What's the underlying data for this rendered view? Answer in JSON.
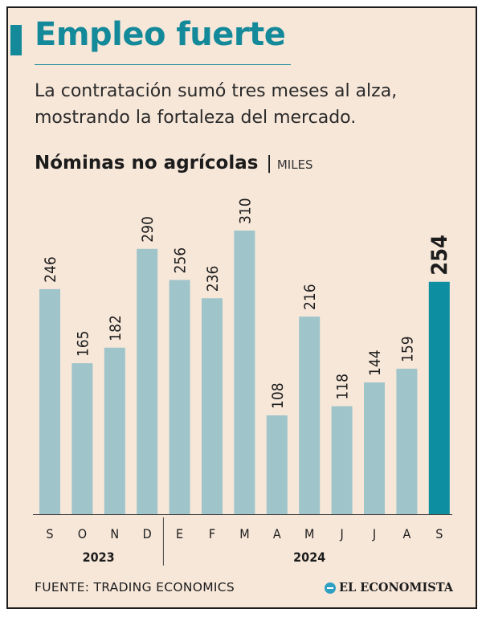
{
  "header": {
    "title": "Empleo fuerte",
    "subtitle": "La contratación sumó tres meses al alza, mostrando la fortaleza del mercado."
  },
  "chart_title": {
    "main": "Nóminas no agrícolas",
    "separator": "|",
    "unit": "MILES"
  },
  "chart_data": {
    "type": "bar",
    "title": "Nóminas no agrícolas",
    "ylabel": "MILES",
    "categories": [
      "S",
      "O",
      "N",
      "D",
      "E",
      "F",
      "M",
      "A",
      "M",
      "J",
      "J",
      "A",
      "S"
    ],
    "values": [
      246,
      165,
      182,
      290,
      256,
      236,
      310,
      108,
      216,
      118,
      144,
      159,
      254
    ],
    "year_groups": [
      {
        "label": "2023",
        "start": 0,
        "end": 3
      },
      {
        "label": "2024",
        "start": 4,
        "end": 12
      }
    ],
    "highlight_index": 12,
    "ylim": [
      0,
      310
    ],
    "grid": false,
    "bar_color": "#9fc4ca",
    "highlight_color": "#0e8ea1"
  },
  "footer": {
    "source": "FUENTE: TRADING ECONOMICS",
    "brand": "EL ECONOMISTA",
    "brand_icon": "el-economista-logo-icon"
  }
}
